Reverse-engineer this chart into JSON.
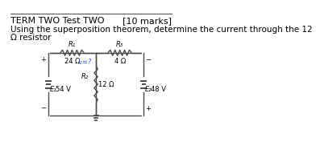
{
  "title_left": "TERM TWO Test TWO",
  "title_right": "[10 marks]",
  "subtitle": "Using the superposition theorem, determine the current through the 12",
  "subtitle2": "Ω resistor",
  "background_color": "#ffffff",
  "line_color": "#4a4a4a",
  "text_color": "#000000",
  "R1_label": "R₁",
  "R1_value": "24 Ω",
  "R2_label": "R₂",
  "R2_value": "12 Ω",
  "R3_label": "R₃",
  "R3_value": "4 Ω",
  "E1_label": "E₁",
  "E1_value": "54 V",
  "E2_label": "E₂",
  "E2_value": "48 V",
  "I2_label": "I₂=?",
  "font_size_title": 8,
  "font_size_text": 7.5,
  "font_size_small": 6.5,
  "font_size_label": 6
}
